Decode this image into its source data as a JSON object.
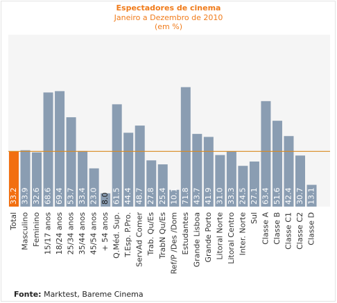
{
  "chart_data": {
    "type": "bar",
    "title": "Espectadores de cinema",
    "subtitle_lines": [
      "Janeiro a Dezembro de 2010",
      "(em %)"
    ],
    "categories": [
      "Total",
      "Masculino",
      "Feminino",
      "15/17 anos",
      "18/24 anos",
      "25/34 anos",
      "35/44 anos",
      "45/54 anos",
      "+ 54  anos",
      "Q.Méd. Sup.",
      "T.Esp. P.Pro.",
      "ServAd Comer",
      "Trab. Qu/Es",
      "TrabN Qu/Es",
      "Ref/P /Des /Dom",
      "Estudantes",
      "Grande Lisboa",
      "Grande Porto",
      "Litoral Norte",
      "Litoral Centro",
      "Inter. Norte",
      "Sul",
      "Classe A",
      "Classe B",
      "Classe C1",
      "Classe C2",
      "Classe D"
    ],
    "values": [
      33.2,
      33.9,
      32.6,
      68.6,
      69.4,
      53.7,
      33.4,
      23.0,
      8.0,
      61.5,
      44.4,
      48.7,
      27.8,
      25.4,
      10.1,
      71.8,
      43.7,
      41.9,
      31.0,
      33.3,
      24.5,
      27.1,
      63.4,
      51.6,
      42.4,
      30.7,
      13.1
    ],
    "value_labels": [
      "33.2",
      "33.9",
      "32.6",
      "68.6",
      "69.4",
      "53.7",
      "33.4",
      "23.0",
      "8.0",
      "61.5",
      "44.4",
      "48.7",
      "27.8",
      "25.4",
      "10.1",
      "71.8",
      "43.7",
      "41.9",
      "31.0",
      "33.3",
      "24.5",
      "27.1",
      "63.4",
      "51.6",
      "42.4",
      "30.7",
      "13.1"
    ],
    "reference_line": 33.2,
    "ylim": [
      0,
      80
    ],
    "grid": false,
    "legend": "none",
    "colors": {
      "highlight_bar": "#f26f10",
      "bar": "#8a9db2",
      "reference_line": "#d8891e",
      "plot_background": "#f5f5f5",
      "title": "#f07b1a"
    }
  },
  "source": {
    "label": "Fonte:",
    "text": " Marktest, Bareme Cinema"
  }
}
